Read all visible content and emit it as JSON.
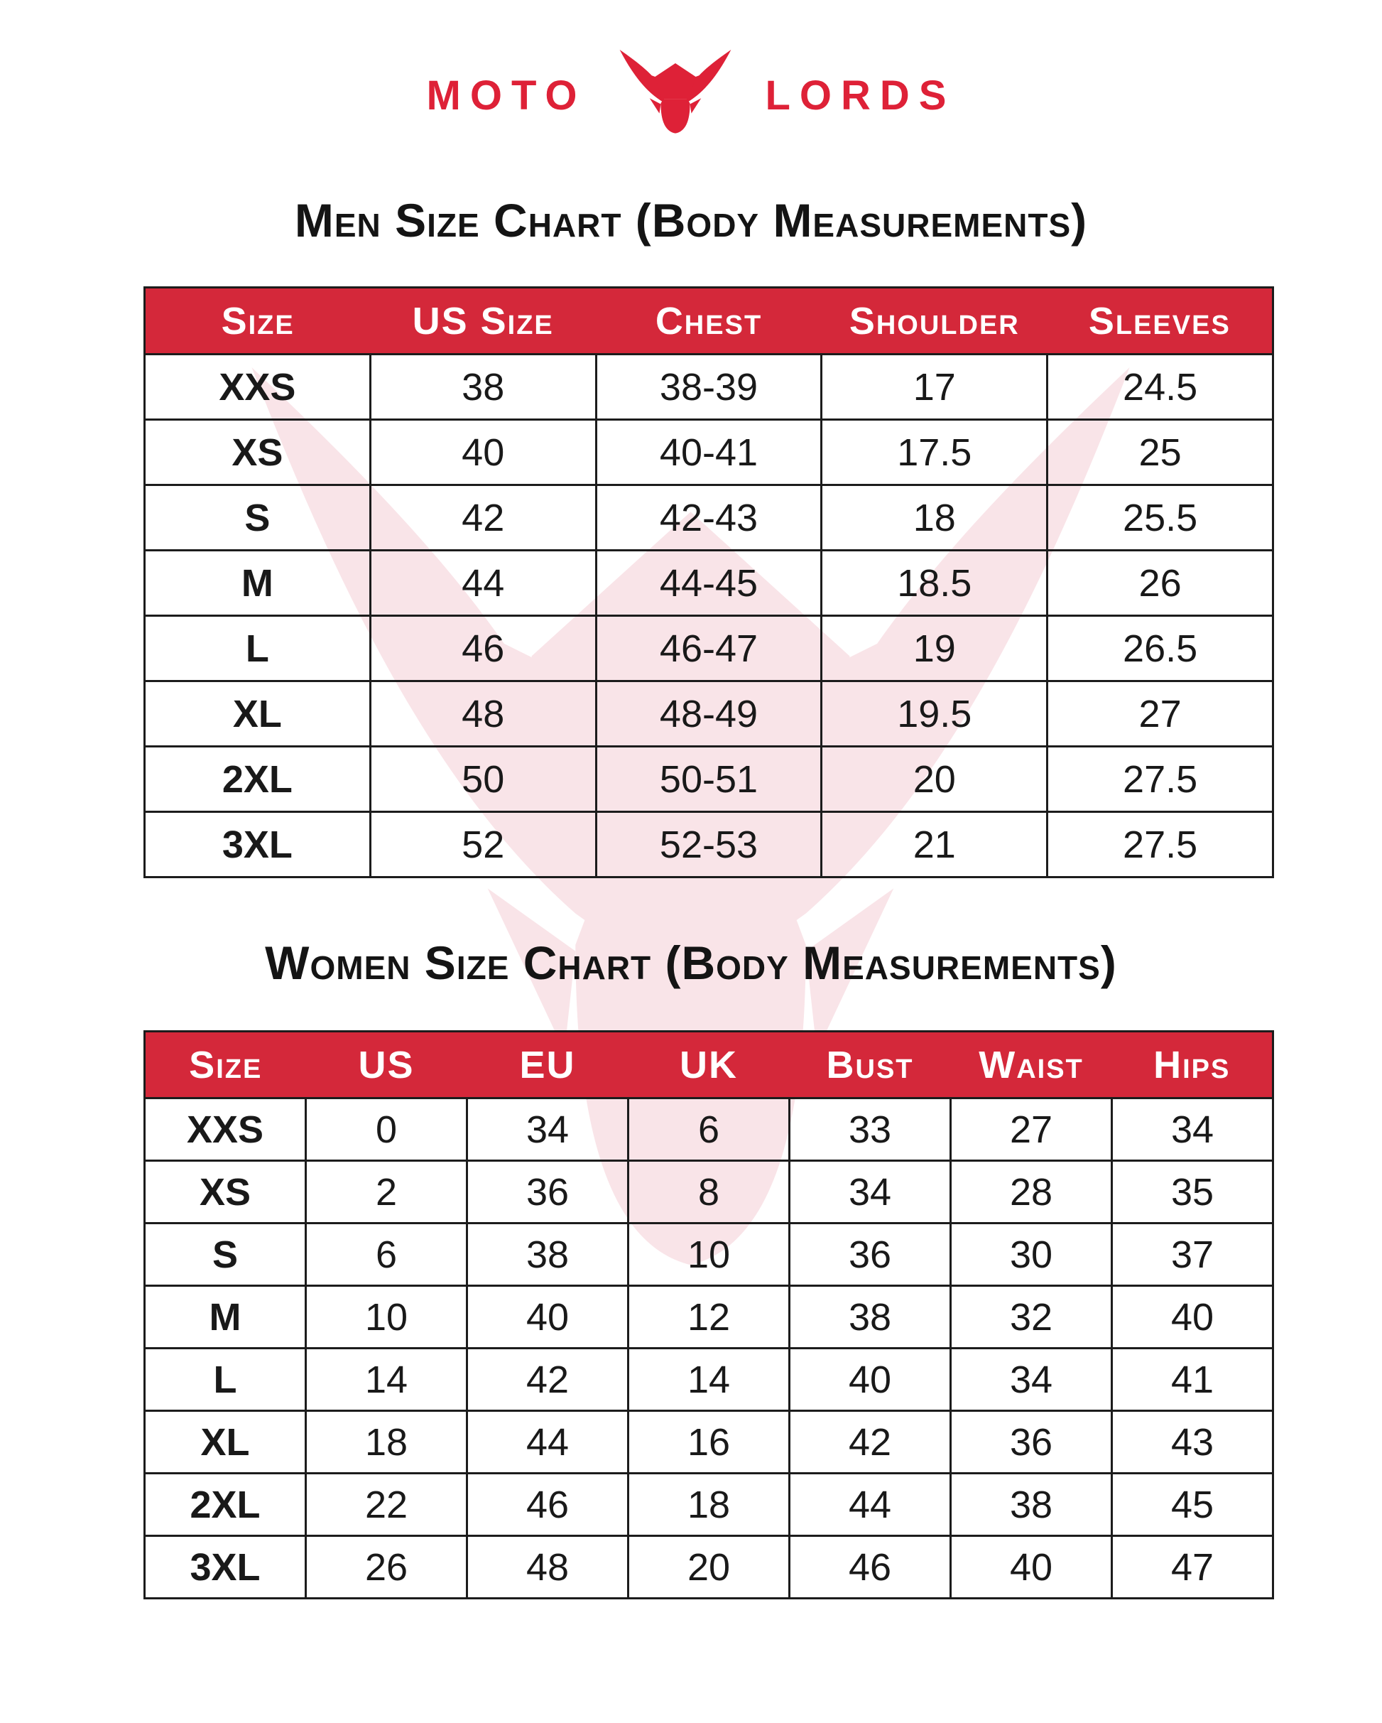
{
  "logo": {
    "moto": "MOTO",
    "lords": "LORDS",
    "icon": "bull-head-icon"
  },
  "colors": {
    "logo_red": "#DE2137",
    "header_red": "#D4283A",
    "watermark_pink": "#F9E4E8",
    "border": "#1C1C1C",
    "text": "#191919"
  },
  "men": {
    "title": "Men Size Chart (Body Measurements)",
    "headers": [
      "Size",
      "US Size",
      "Chest",
      "Shoulder",
      "Sleeves"
    ],
    "rows": [
      [
        "XXS",
        "38",
        "38-39",
        "17",
        "24.5"
      ],
      [
        "XS",
        "40",
        "40-41",
        "17.5",
        "25"
      ],
      [
        "S",
        "42",
        "42-43",
        "18",
        "25.5"
      ],
      [
        "M",
        "44",
        "44-45",
        "18.5",
        "26"
      ],
      [
        "L",
        "46",
        "46-47",
        "19",
        "26.5"
      ],
      [
        "XL",
        "48",
        "48-49",
        "19.5",
        "27"
      ],
      [
        "2XL",
        "50",
        "50-51",
        "20",
        "27.5"
      ],
      [
        "3XL",
        "52",
        "52-53",
        "21",
        "27.5"
      ]
    ]
  },
  "women": {
    "title": "Women Size Chart (Body Measurements)",
    "headers": [
      "Size",
      "US",
      "EU",
      "UK",
      "Bust",
      "Waist",
      "Hips"
    ],
    "rows": [
      [
        "XXS",
        "0",
        "34",
        "6",
        "33",
        "27",
        "34"
      ],
      [
        "XS",
        "2",
        "36",
        "8",
        "34",
        "28",
        "35"
      ],
      [
        "S",
        "6",
        "38",
        "10",
        "36",
        "30",
        "37"
      ],
      [
        "M",
        "10",
        "40",
        "12",
        "38",
        "32",
        "40"
      ],
      [
        "L",
        "14",
        "42",
        "14",
        "40",
        "34",
        "41"
      ],
      [
        "XL",
        "18",
        "44",
        "16",
        "42",
        "36",
        "43"
      ],
      [
        "2XL",
        "22",
        "46",
        "18",
        "44",
        "38",
        "45"
      ],
      [
        "3XL",
        "26",
        "48",
        "20",
        "46",
        "40",
        "47"
      ]
    ]
  }
}
